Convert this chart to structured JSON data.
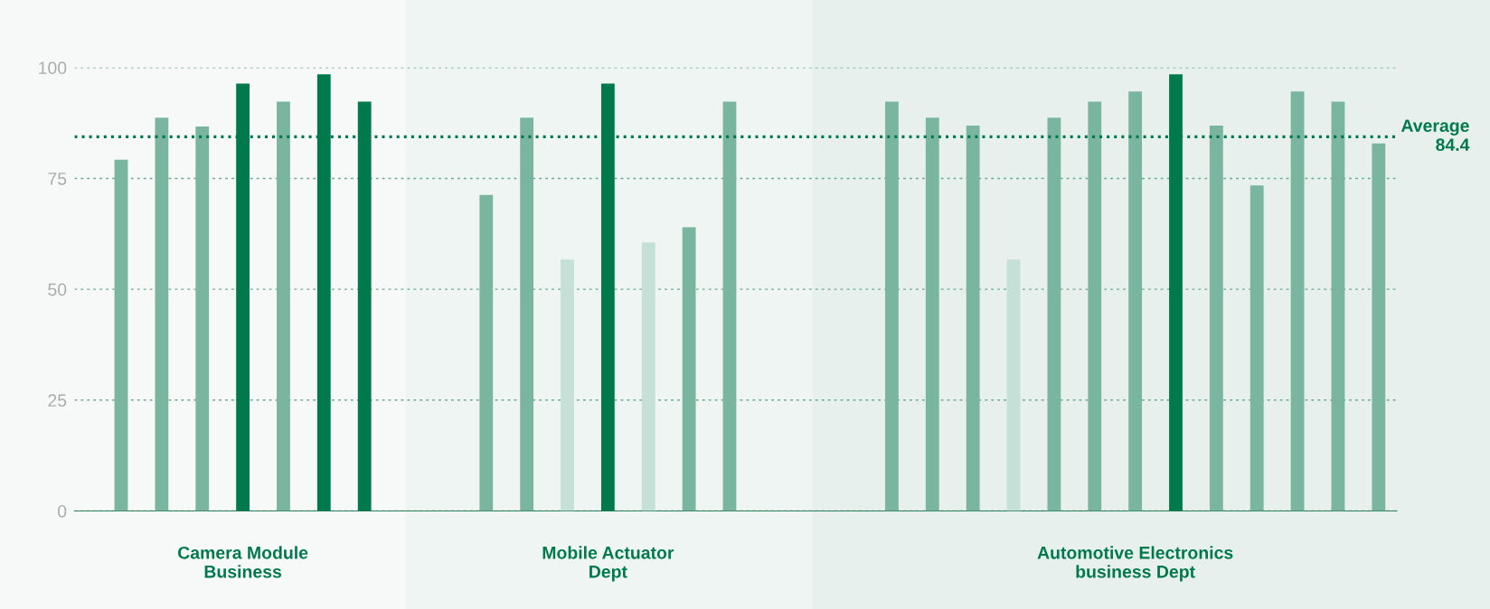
{
  "chart_data": {
    "type": "bar",
    "categories": [
      null,
      null,
      null,
      "Camera Module\nBusiness",
      null,
      null,
      null,
      null,
      null,
      null,
      null,
      null,
      "Mobile Actuator\nDept",
      null,
      null,
      null,
      null,
      null,
      null,
      null,
      null,
      null,
      null,
      null,
      null,
      "Automotive Electronics\nbusiness Dept",
      null,
      null,
      null,
      null,
      null,
      null
    ],
    "values": [
      79.2,
      88.7,
      86.7,
      96.4,
      92.3,
      98.5,
      92.3,
      null,
      null,
      71.3,
      88.7,
      56.7,
      96.4,
      60.6,
      64.0,
      92.3,
      null,
      null,
      null,
      92.3,
      88.7,
      86.9,
      56.7,
      88.7,
      92.3,
      94.6,
      98.5,
      86.9,
      73.4,
      94.6,
      92.3,
      82.9
    ],
    "colors": [
      "#7ab5a0",
      "#7ab5a0",
      "#7ab5a0",
      "#007a4d",
      "#7ab5a0",
      "#007a4d",
      "#007a4d",
      null,
      null,
      "#7ab5a0",
      "#7ab5a0",
      "#c5e0d6",
      "#007a4d",
      "#c5e0d6",
      "#7ab5a0",
      "#7ab5a0",
      null,
      null,
      null,
      "#7ab5a0",
      "#7ab5a0",
      "#7ab5a0",
      "#c5e0d6",
      "#7ab5a0",
      "#7ab5a0",
      "#7ab5a0",
      "#007a4d",
      "#7ab5a0",
      "#7ab5a0",
      "#7ab5a0",
      "#7ab5a0",
      "#7ab5a0"
    ],
    "ylim": [
      0,
      100
    ],
    "yticks": [
      0,
      25,
      50,
      75,
      100
    ],
    "grid": "y",
    "ref_lines": [
      {
        "axis": "y",
        "value": 84.4,
        "label": "Average\n84.4",
        "color": "#007a4d",
        "line_style": "dotted"
      }
    ]
  }
}
